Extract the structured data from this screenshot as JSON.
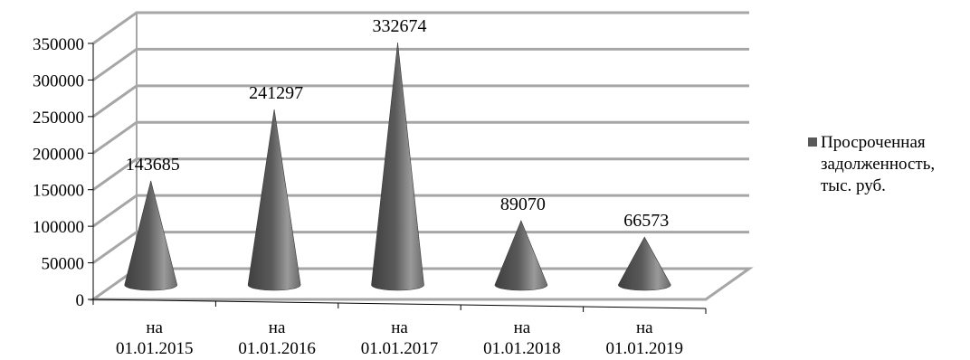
{
  "chart_data": {
    "type": "bar",
    "bar_shape": "cone",
    "style": "3d",
    "categories": [
      [
        "на",
        "01.01.2015"
      ],
      [
        "на",
        "01.01.2016"
      ],
      [
        "на",
        "01.01.2017"
      ],
      [
        "на",
        "01.01.2018"
      ],
      [
        "на",
        "01.01.2019"
      ]
    ],
    "series": [
      {
        "name": "Просроченная задолженность, тыс. руб.",
        "name_lines": [
          "Просроченная",
          "задолженность,",
          "тыс. руб."
        ],
        "values": [
          143685,
          241297,
          332674,
          89070,
          66573
        ],
        "data_labels": [
          "143685",
          "241297",
          "332674",
          "89070",
          "66573"
        ]
      }
    ],
    "yticks": [
      0,
      50000,
      100000,
      150000,
      200000,
      250000,
      300000,
      350000
    ],
    "ylim": [
      0,
      350000
    ],
    "grid": true,
    "legend": "right",
    "colors": {
      "cone_dark": "#4a4a4a",
      "cone_light": "#9a9a9a",
      "grid": "#a6a6a6",
      "legend_marker": "#595959"
    }
  }
}
